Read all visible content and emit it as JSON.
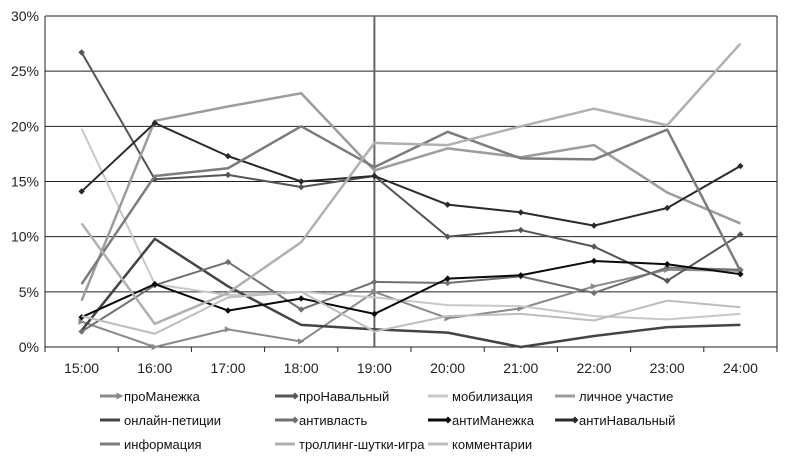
{
  "chart_data": {
    "type": "line",
    "categories": [
      "15:00",
      "16:00",
      "17:00",
      "18:00",
      "19:00",
      "20:00",
      "21:00",
      "22:00",
      "23:00",
      "24:00"
    ],
    "y_ticks": [
      "0%",
      "5%",
      "10%",
      "15%",
      "20%",
      "25%",
      "30%"
    ],
    "ylim": [
      0,
      30
    ],
    "y_unit": "%",
    "vertical_marker_category": "19:00",
    "grid": "horizontal",
    "legend_position": "bottom",
    "series": [
      {
        "name": "проМанежка",
        "color": "#8a8a8a",
        "marker": "arrow",
        "width": 2,
        "values": [
          2.3,
          0,
          1.6,
          0.5,
          5.0,
          2.6,
          3.5,
          5.5,
          7.0,
          6.9
        ]
      },
      {
        "name": "проНавальный",
        "color": "#555555",
        "marker": "diamond",
        "width": 2,
        "values": [
          26.7,
          15.2,
          15.6,
          14.5,
          15.5,
          10.0,
          10.6,
          9.1,
          6.0,
          10.2
        ]
      },
      {
        "name": "мобилизация",
        "color": "#c8c8c8",
        "marker": "none",
        "width": 2,
        "values": [
          19.8,
          5.7,
          4.7,
          5.0,
          4.5,
          3.8,
          3.7,
          2.8,
          2.5,
          3.0
        ]
      },
      {
        "name": "личное участие",
        "color": "#9c9c9c",
        "marker": "none",
        "width": 2.5,
        "values": [
          4.2,
          20.5,
          21.8,
          23.0,
          16.0,
          18.0,
          17.2,
          18.3,
          14.0,
          11.2
        ]
      },
      {
        "name": "онлайн-петиции",
        "color": "#444444",
        "marker": "none",
        "width": 2.5,
        "values": [
          1.5,
          9.8,
          5.5,
          2.0,
          1.6,
          1.3,
          0.0,
          1.0,
          1.8,
          2.0
        ]
      },
      {
        "name": "антивласть",
        "color": "#707070",
        "marker": "diamond",
        "width": 2,
        "values": [
          1.4,
          5.6,
          7.7,
          3.4,
          5.9,
          5.8,
          6.4,
          4.9,
          7.2,
          7.0
        ]
      },
      {
        "name": "антиМанежка",
        "color": "#0a0a0a",
        "marker": "diamond",
        "width": 2,
        "values": [
          2.7,
          5.7,
          3.3,
          4.4,
          3.0,
          6.2,
          6.5,
          7.8,
          7.5,
          6.6
        ]
      },
      {
        "name": "антиНавальный",
        "color": "#2a2a2a",
        "marker": "diamond",
        "width": 2,
        "values": [
          14.1,
          20.3,
          17.3,
          15.0,
          15.5,
          12.9,
          12.2,
          11.0,
          12.6,
          16.4
        ]
      },
      {
        "name": "информация",
        "color": "#7c7c7c",
        "marker": "none",
        "width": 2.5,
        "values": [
          5.7,
          15.5,
          16.2,
          20.0,
          16.3,
          19.5,
          17.1,
          17.0,
          19.7,
          6.9
        ]
      },
      {
        "name": "троллинг-шутки-игра",
        "color": "#b0b0b0",
        "marker": "none",
        "width": 2.5,
        "values": [
          11.2,
          2.1,
          4.9,
          9.5,
          18.5,
          18.3,
          20.0,
          21.6,
          20.1,
          27.5
        ]
      },
      {
        "name": "комментарии",
        "color": "#bdbdbd",
        "marker": "none",
        "width": 2,
        "values": [
          2.8,
          1.2,
          4.5,
          5.0,
          1.4,
          2.8,
          3.0,
          2.4,
          4.2,
          3.6
        ]
      }
    ]
  }
}
